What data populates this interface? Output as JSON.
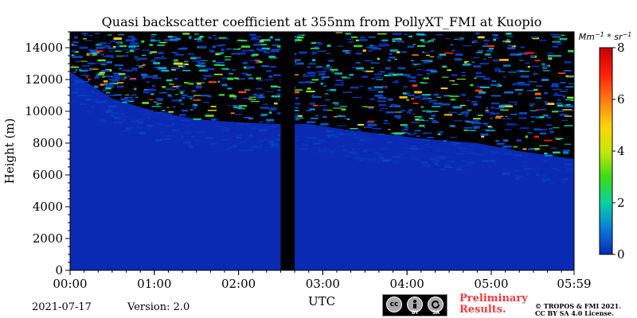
{
  "chart_data": {
    "type": "heatmap",
    "title": "Quasi backscatter coefficient at 355nm from PollyXT_FMI at Kuopio",
    "xlabel": "UTC",
    "ylabel": "Height (m)",
    "x_ticks": [
      "00:00",
      "01:00",
      "02:00",
      "03:00",
      "04:00",
      "05:00",
      "05:59"
    ],
    "x_range_minutes": [
      0,
      359
    ],
    "y_ticks": [
      0,
      2000,
      4000,
      6000,
      8000,
      10000,
      12000,
      14000
    ],
    "ylim": [
      0,
      15000
    ],
    "colorbar": {
      "label": "Mm^-1 * sr^-1",
      "ticks": [
        0,
        2,
        4,
        6,
        8
      ],
      "range": [
        0,
        8
      ],
      "colors": [
        "#0a2ab4",
        "#0a7adc",
        "#0ad2a0",
        "#3cdc14",
        "#c8e60a",
        "#ffd20a",
        "#ff7814",
        "#ff1e0a",
        "#c80000"
      ]
    },
    "background_value": 0,
    "data_gap_utc": [
      "02:30",
      "02:40"
    ],
    "signal_top_m": {
      "x_minutes": [
        0,
        30,
        60,
        90,
        120,
        150,
        170,
        200,
        230,
        260,
        290,
        320,
        359
      ],
      "height": [
        12500,
        10800,
        10000,
        9500,
        9300,
        9200,
        9200,
        8800,
        8500,
        8200,
        8000,
        7500,
        7000
      ]
    },
    "grid": false
  },
  "footer": {
    "date": "2021-07-17",
    "version": "Version: 2.0",
    "preliminary_line1": "Preliminary",
    "preliminary_line2": "Results.",
    "copyright_line1": "© TROPOS & FMI 2021.",
    "copyright_line2": "CC BY SA 4.0 License.",
    "license_badge": {
      "cc": "cc",
      "by": "BY",
      "sa": "SA"
    }
  }
}
